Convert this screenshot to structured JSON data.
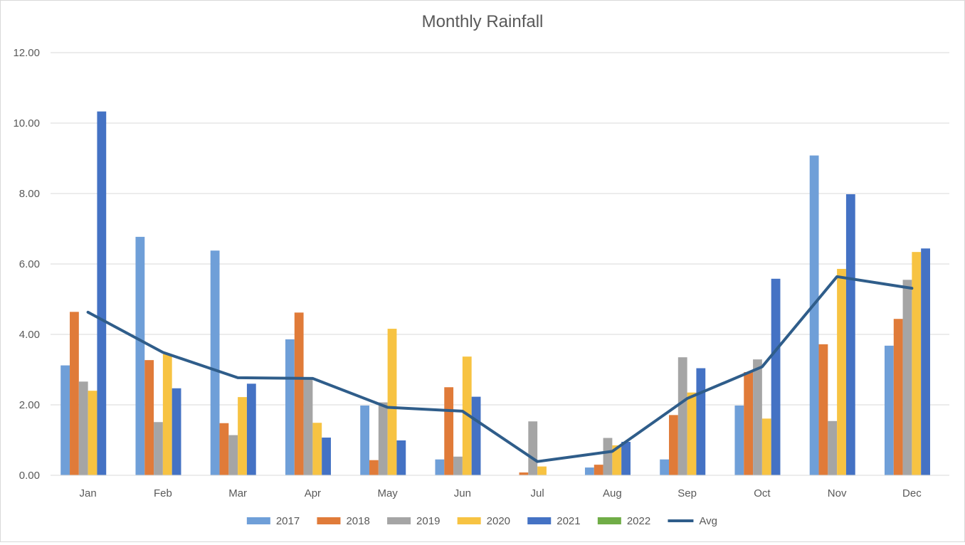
{
  "chart_data": {
    "type": "bar",
    "title": "Monthly Rainfall",
    "xlabel": "",
    "ylabel": "",
    "ylim": [
      0,
      12
    ],
    "yticks": [
      "0.00",
      "2.00",
      "4.00",
      "6.00",
      "8.00",
      "10.00",
      "12.00"
    ],
    "grid": true,
    "legend": "bottom",
    "categories": [
      "Jan",
      "Feb",
      "Mar",
      "Apr",
      "May",
      "Jun",
      "Jul",
      "Aug",
      "Sep",
      "Oct",
      "Nov",
      "Dec"
    ],
    "series": [
      {
        "name": "2017",
        "type": "bar",
        "color": "#6f9fd8",
        "values": [
          3.12,
          6.77,
          6.38,
          3.86,
          1.98,
          0.45,
          0.0,
          0.22,
          0.45,
          1.98,
          9.08,
          3.68
        ]
      },
      {
        "name": "2018",
        "type": "bar",
        "color": "#e07b39",
        "values": [
          4.64,
          3.27,
          1.48,
          4.62,
          0.43,
          2.5,
          0.08,
          0.3,
          1.71,
          2.93,
          3.72,
          4.44
        ]
      },
      {
        "name": "2019",
        "type": "bar",
        "color": "#a5a5a5",
        "values": [
          2.66,
          1.51,
          1.14,
          2.73,
          2.07,
          0.53,
          1.53,
          1.06,
          3.35,
          3.29,
          1.54,
          5.55
        ]
      },
      {
        "name": "2020",
        "type": "bar",
        "color": "#f7c342",
        "values": [
          2.4,
          3.44,
          2.22,
          1.49,
          4.16,
          3.37,
          0.25,
          0.85,
          2.35,
          1.61,
          5.86,
          6.34
        ]
      },
      {
        "name": "2021",
        "type": "bar",
        "color": "#4472c4",
        "values": [
          10.33,
          2.47,
          2.6,
          1.07,
          0.99,
          2.23,
          0.0,
          0.95,
          3.04,
          5.58,
          7.98,
          6.44
        ]
      },
      {
        "name": "2022",
        "type": "bar",
        "color": "#70ad47",
        "values": [
          null,
          null,
          null,
          null,
          null,
          null,
          null,
          null,
          null,
          null,
          null,
          null
        ]
      },
      {
        "name": "Avg",
        "type": "line",
        "color": "#2f5d8a",
        "values": [
          4.63,
          3.49,
          2.77,
          2.75,
          1.93,
          1.82,
          0.39,
          0.68,
          2.18,
          3.08,
          5.64,
          5.31
        ]
      }
    ]
  }
}
